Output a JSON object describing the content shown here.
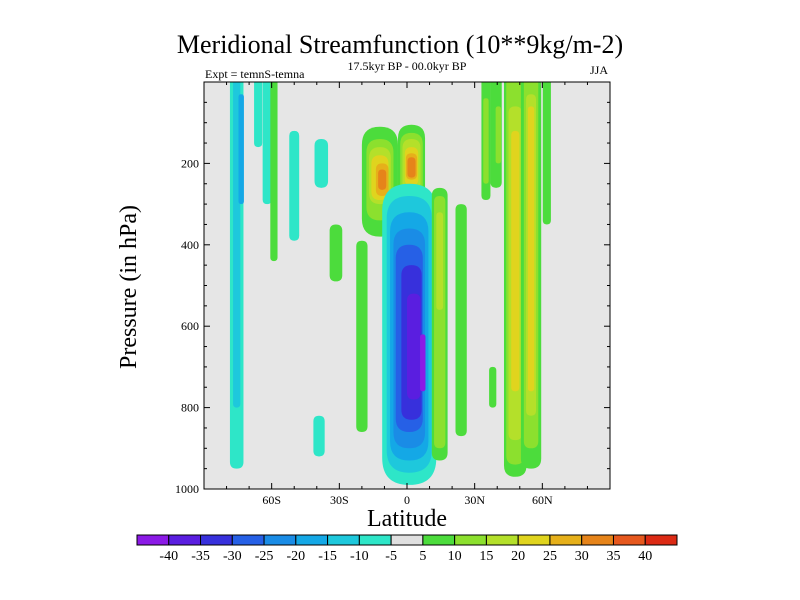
{
  "chart_data": {
    "type": "contour",
    "title": "Meridional Streamfunction (10**9kg/m-2)",
    "left_label": "Expt = temnS-temna",
    "center_label": "17.5kyr BP - 00.0kyr BP",
    "right_label": "JJA",
    "xlabel": "Latitude",
    "ylabel": "Pressure (in hPa)",
    "xlim": [
      -90,
      90
    ],
    "ylim": [
      1000,
      0
    ],
    "x_ticks": [
      {
        "value": -60,
        "label": "60S"
      },
      {
        "value": -30,
        "label": "30S"
      },
      {
        "value": 0,
        "label": "0"
      },
      {
        "value": 30,
        "label": "30N"
      },
      {
        "value": 60,
        "label": "60N"
      }
    ],
    "y_ticks": [
      {
        "value": 200,
        "label": "200"
      },
      {
        "value": 400,
        "label": "400"
      },
      {
        "value": 600,
        "label": "600"
      },
      {
        "value": 800,
        "label": "800"
      },
      {
        "value": 1000,
        "label": "1000"
      }
    ],
    "colorbar_levels": [
      "-40",
      "-35",
      "-30",
      "-25",
      "-20",
      "-15",
      "-10",
      "-5",
      "5",
      "10",
      "15",
      "20",
      "25",
      "30",
      "35",
      "40"
    ],
    "colorbar_colors": [
      "#8b1ae6",
      "#5a1ee0",
      "#3730dc",
      "#2660e6",
      "#1a8ce6",
      "#14a8e6",
      "#1ec8dc",
      "#2ee6c8",
      "#e0e0e0",
      "#4cdc3c",
      "#8ce02e",
      "#b4e02a",
      "#e0d41e",
      "#e6b01a",
      "#e6841a",
      "#e6581e",
      "#dc2a14"
    ],
    "background_color": "#e6e6e6",
    "regions": [
      {
        "lat": -75.5,
        "p0": 0,
        "p1": 950,
        "hw": 3,
        "level": -5
      },
      {
        "lat": -75.5,
        "p0": 0,
        "p1": 800,
        "hw": 1.6,
        "level": -10
      },
      {
        "lat": -73.5,
        "p0": 30,
        "p1": 300,
        "hw": 1.2,
        "level": -15
      },
      {
        "lat": -66,
        "p0": 0,
        "p1": 160,
        "hw": 1.8,
        "level": -5
      },
      {
        "lat": -62,
        "p0": 0,
        "p1": 300,
        "hw": 2,
        "level": -5
      },
      {
        "lat": -59,
        "p0": 0,
        "p1": 440,
        "hw": 1.6,
        "level": 5
      },
      {
        "lat": -50,
        "p0": 120,
        "p1": 390,
        "hw": 2.2,
        "level": -5
      },
      {
        "lat": -38,
        "p0": 140,
        "p1": 260,
        "hw": 3,
        "level": -5
      },
      {
        "lat": -39,
        "p0": 820,
        "p1": 920,
        "hw": 2.5,
        "level": -5
      },
      {
        "lat": -31.5,
        "p0": 350,
        "p1": 490,
        "hw": 2.8,
        "level": 5
      },
      {
        "lat": -20,
        "p0": 390,
        "p1": 860,
        "hw": 2.5,
        "level": 5
      },
      {
        "lat": -12,
        "p0": 110,
        "p1": 380,
        "hw": 8,
        "level": 5
      },
      {
        "lat": -12,
        "p0": 140,
        "p1": 340,
        "hw": 6,
        "level": 10
      },
      {
        "lat": -12,
        "p0": 160,
        "p1": 300,
        "hw": 4.8,
        "level": 15
      },
      {
        "lat": -12,
        "p0": 180,
        "p1": 290,
        "hw": 3.8,
        "level": 20
      },
      {
        "lat": -11,
        "p0": 200,
        "p1": 280,
        "hw": 2.8,
        "level": 25
      },
      {
        "lat": -11,
        "p0": 215,
        "p1": 265,
        "hw": 1.8,
        "level": 30
      },
      {
        "lat": 2,
        "p0": 105,
        "p1": 310,
        "hw": 6,
        "level": 5
      },
      {
        "lat": 2,
        "p0": 125,
        "p1": 280,
        "hw": 5,
        "level": 10
      },
      {
        "lat": 2,
        "p0": 140,
        "p1": 270,
        "hw": 4,
        "level": 15
      },
      {
        "lat": 2,
        "p0": 160,
        "p1": 255,
        "hw": 3,
        "level": 20
      },
      {
        "lat": 2,
        "p0": 175,
        "p1": 240,
        "hw": 2.5,
        "level": 25
      },
      {
        "lat": 2,
        "p0": 185,
        "p1": 235,
        "hw": 1.8,
        "level": 30
      },
      {
        "lat": 1,
        "p0": 250,
        "p1": 990,
        "hw": 12,
        "level": -5
      },
      {
        "lat": 1,
        "p0": 280,
        "p1": 960,
        "hw": 10,
        "level": -10
      },
      {
        "lat": 1,
        "p0": 320,
        "p1": 930,
        "hw": 8.5,
        "level": -15
      },
      {
        "lat": 1,
        "p0": 360,
        "p1": 900,
        "hw": 7,
        "level": -20
      },
      {
        "lat": 1,
        "p0": 400,
        "p1": 860,
        "hw": 6,
        "level": -25
      },
      {
        "lat": 2,
        "p0": 450,
        "p1": 830,
        "hw": 4.5,
        "level": -30
      },
      {
        "lat": 3,
        "p0": 520,
        "p1": 780,
        "hw": 3,
        "level": -35
      },
      {
        "lat": 7,
        "p0": 620,
        "p1": 760,
        "hw": 1.2,
        "level": -40
      },
      {
        "lat": 14.5,
        "p0": 260,
        "p1": 930,
        "hw": 3.5,
        "level": 5
      },
      {
        "lat": 14.5,
        "p0": 280,
        "p1": 900,
        "hw": 2.5,
        "level": 10
      },
      {
        "lat": 14.5,
        "p0": 320,
        "p1": 560,
        "hw": 1.5,
        "level": 15
      },
      {
        "lat": 24,
        "p0": 300,
        "p1": 870,
        "hw": 2.5,
        "level": 5
      },
      {
        "lat": 35,
        "p0": 0,
        "p1": 290,
        "hw": 2,
        "level": 5
      },
      {
        "lat": 35,
        "p0": 40,
        "p1": 250,
        "hw": 1.2,
        "level": 10
      },
      {
        "lat": 38,
        "p0": 700,
        "p1": 800,
        "hw": 1.6,
        "level": 5
      },
      {
        "lat": 39.5,
        "p0": 0,
        "p1": 260,
        "hw": 2.5,
        "level": 5
      },
      {
        "lat": 40.5,
        "p0": 60,
        "p1": 200,
        "hw": 1.2,
        "level": 10
      },
      {
        "lat": 48,
        "p0": 0,
        "p1": 970,
        "hw": 5,
        "level": 5
      },
      {
        "lat": 48,
        "p0": 0,
        "p1": 940,
        "hw": 4,
        "level": 10
      },
      {
        "lat": 48,
        "p0": 60,
        "p1": 880,
        "hw": 3,
        "level": 15
      },
      {
        "lat": 48,
        "p0": 120,
        "p1": 760,
        "hw": 1.8,
        "level": 20
      },
      {
        "lat": 55,
        "p0": 0,
        "p1": 950,
        "hw": 4.5,
        "level": 5
      },
      {
        "lat": 55,
        "p0": 0,
        "p1": 900,
        "hw": 3.2,
        "level": 10
      },
      {
        "lat": 55,
        "p0": 30,
        "p1": 820,
        "hw": 2.2,
        "level": 15
      },
      {
        "lat": 55,
        "p0": 60,
        "p1": 760,
        "hw": 1.4,
        "level": 20
      },
      {
        "lat": 62,
        "p0": 0,
        "p1": 350,
        "hw": 1.8,
        "level": 5
      }
    ]
  }
}
